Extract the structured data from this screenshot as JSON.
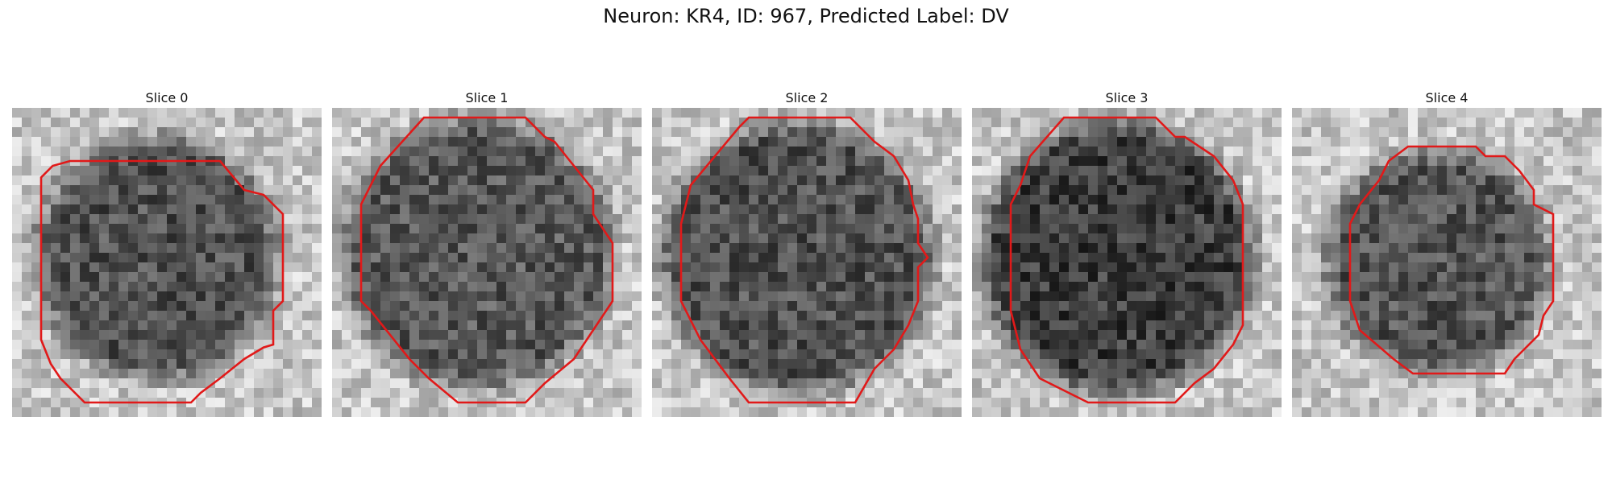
{
  "figure": {
    "title": "Neuron: KR4, ID: 967, Predicted Label: DV",
    "contour_color": "#e11919",
    "slices": [
      {
        "label": "Slice 0"
      },
      {
        "label": "Slice 1"
      },
      {
        "label": "Slice 2"
      },
      {
        "label": "Slice 3"
      },
      {
        "label": "Slice 4"
      }
    ]
  }
}
